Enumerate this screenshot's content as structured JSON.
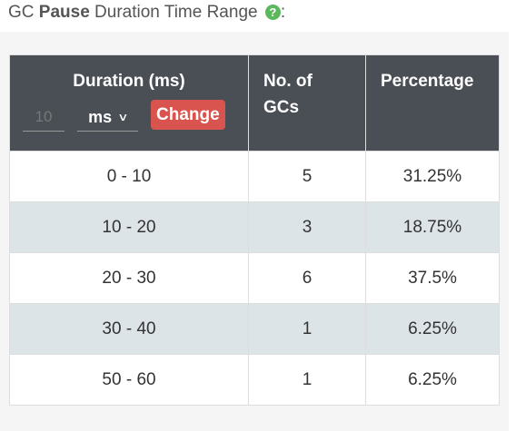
{
  "heading": {
    "prefix": "GC ",
    "bold": "Pause",
    "suffix": " Duration Time Range ",
    "trailing": ":",
    "help_icon": "question-circle-icon",
    "help_glyph": "?",
    "help_color": "#5cb85c"
  },
  "table": {
    "columns": [
      "Duration (ms)",
      "No. of GCs",
      "Percentage"
    ],
    "controls": {
      "interval_placeholder": "10",
      "unit_value": "ms",
      "change_label": "Change"
    },
    "rows": [
      {
        "range": "0 - 10",
        "count": "5",
        "percentage": "31.25%"
      },
      {
        "range": "10 - 20",
        "count": "3",
        "percentage": "18.75%"
      },
      {
        "range": "20 - 30",
        "count": "6",
        "percentage": "37.5%"
      },
      {
        "range": "30 - 40",
        "count": "1",
        "percentage": "6.25%"
      },
      {
        "range": "50 - 60",
        "count": "1",
        "percentage": "6.25%"
      }
    ]
  },
  "colors": {
    "header_bg": "#4a4f55",
    "stripe": "#dde4e8",
    "change_button": "#d9534f"
  }
}
